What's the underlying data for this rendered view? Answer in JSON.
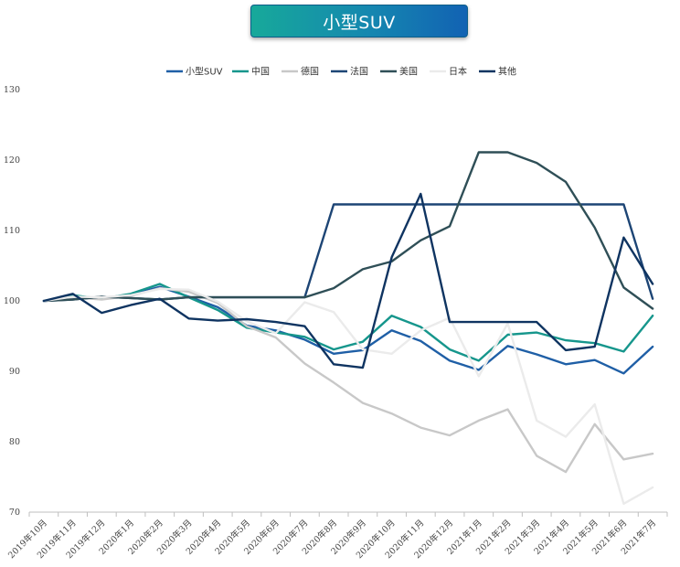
{
  "chart_data": {
    "type": "line",
    "title": "小型SUV",
    "xlabel": "",
    "ylabel": "",
    "ylim": [
      70,
      130
    ],
    "yticks": [
      70,
      80,
      90,
      100,
      110,
      120,
      130
    ],
    "grid": false,
    "legend_position": "top-center",
    "categories": [
      "2019年10月",
      "2019年11月",
      "2019年12月",
      "2020年1月",
      "2020年2月",
      "2020年3月",
      "2020年4月",
      "2020年5月",
      "2020年6月",
      "2020年7月",
      "2020年8月",
      "2020年9月",
      "2020年10月",
      "2020年11月",
      "2020年12月",
      "2021年1月",
      "2021年2月",
      "2021年3月",
      "2021年4月",
      "2021年5月",
      "2021年6月",
      "2021年7月"
    ],
    "series": [
      {
        "name": "小型SUV",
        "color": "#1f5fa6",
        "values": [
          100,
          100.4,
          100.4,
          100.9,
          102.0,
          100.6,
          99.1,
          96.5,
          95.8,
          94.5,
          92.5,
          93.0,
          95.8,
          94.3,
          91.5,
          90.2,
          93.6,
          92.4,
          91.0,
          91.6,
          89.7,
          93.5
        ]
      },
      {
        "name": "中国",
        "color": "#16968c",
        "values": [
          100,
          100.8,
          100.3,
          101.0,
          102.4,
          100.5,
          98.7,
          96.2,
          95.5,
          94.9,
          93.1,
          94.2,
          97.9,
          96.3,
          93.1,
          91.5,
          95.2,
          95.5,
          94.4,
          94.0,
          92.8,
          97.9
        ]
      },
      {
        "name": "德国",
        "color": "#c8c8c8",
        "values": [
          100,
          100.5,
          100.2,
          100.7,
          101.8,
          101.3,
          99.7,
          96.4,
          94.8,
          91.1,
          88.4,
          85.5,
          84.0,
          82.0,
          80.9,
          83.0,
          84.6,
          78.0,
          75.7,
          82.5,
          77.5,
          78.3
        ]
      },
      {
        "name": "法国",
        "color": "#1d4575",
        "values": [
          100,
          100.2,
          100.6,
          100.4,
          100.2,
          100.5,
          100.5,
          100.5,
          100.5,
          100.5,
          113.7,
          113.7,
          113.7,
          113.7,
          113.7,
          113.7,
          113.7,
          113.7,
          113.7,
          113.7,
          113.7,
          100.3
        ]
      },
      {
        "name": "美国",
        "color": "#2f4f57",
        "values": [
          100,
          100.2,
          100.6,
          100.4,
          100.2,
          100.5,
          100.5,
          100.5,
          100.5,
          100.5,
          101.8,
          104.5,
          105.6,
          108.6,
          110.6,
          121.1,
          121.1,
          119.6,
          116.9,
          110.4,
          101.9,
          98.9
        ]
      },
      {
        "name": "日本",
        "color": "#ebebeb",
        "values": [
          100,
          100.6,
          100.5,
          100.8,
          101.7,
          101.6,
          99.9,
          97.1,
          95.4,
          99.8,
          98.4,
          93.1,
          92.5,
          95.8,
          97.6,
          89.3,
          96.8,
          83.0,
          80.7,
          85.3,
          71.2,
          73.5
        ]
      },
      {
        "name": "其他",
        "color": "#0f3461",
        "values": [
          100,
          101.0,
          98.3,
          99.4,
          100.3,
          97.5,
          97.2,
          97.4,
          97.0,
          96.4,
          91.0,
          90.5,
          106.2,
          115.2,
          97.0,
          97.0,
          97.0,
          97.0,
          93.0,
          93.5,
          109.0,
          102.4
        ]
      }
    ]
  }
}
